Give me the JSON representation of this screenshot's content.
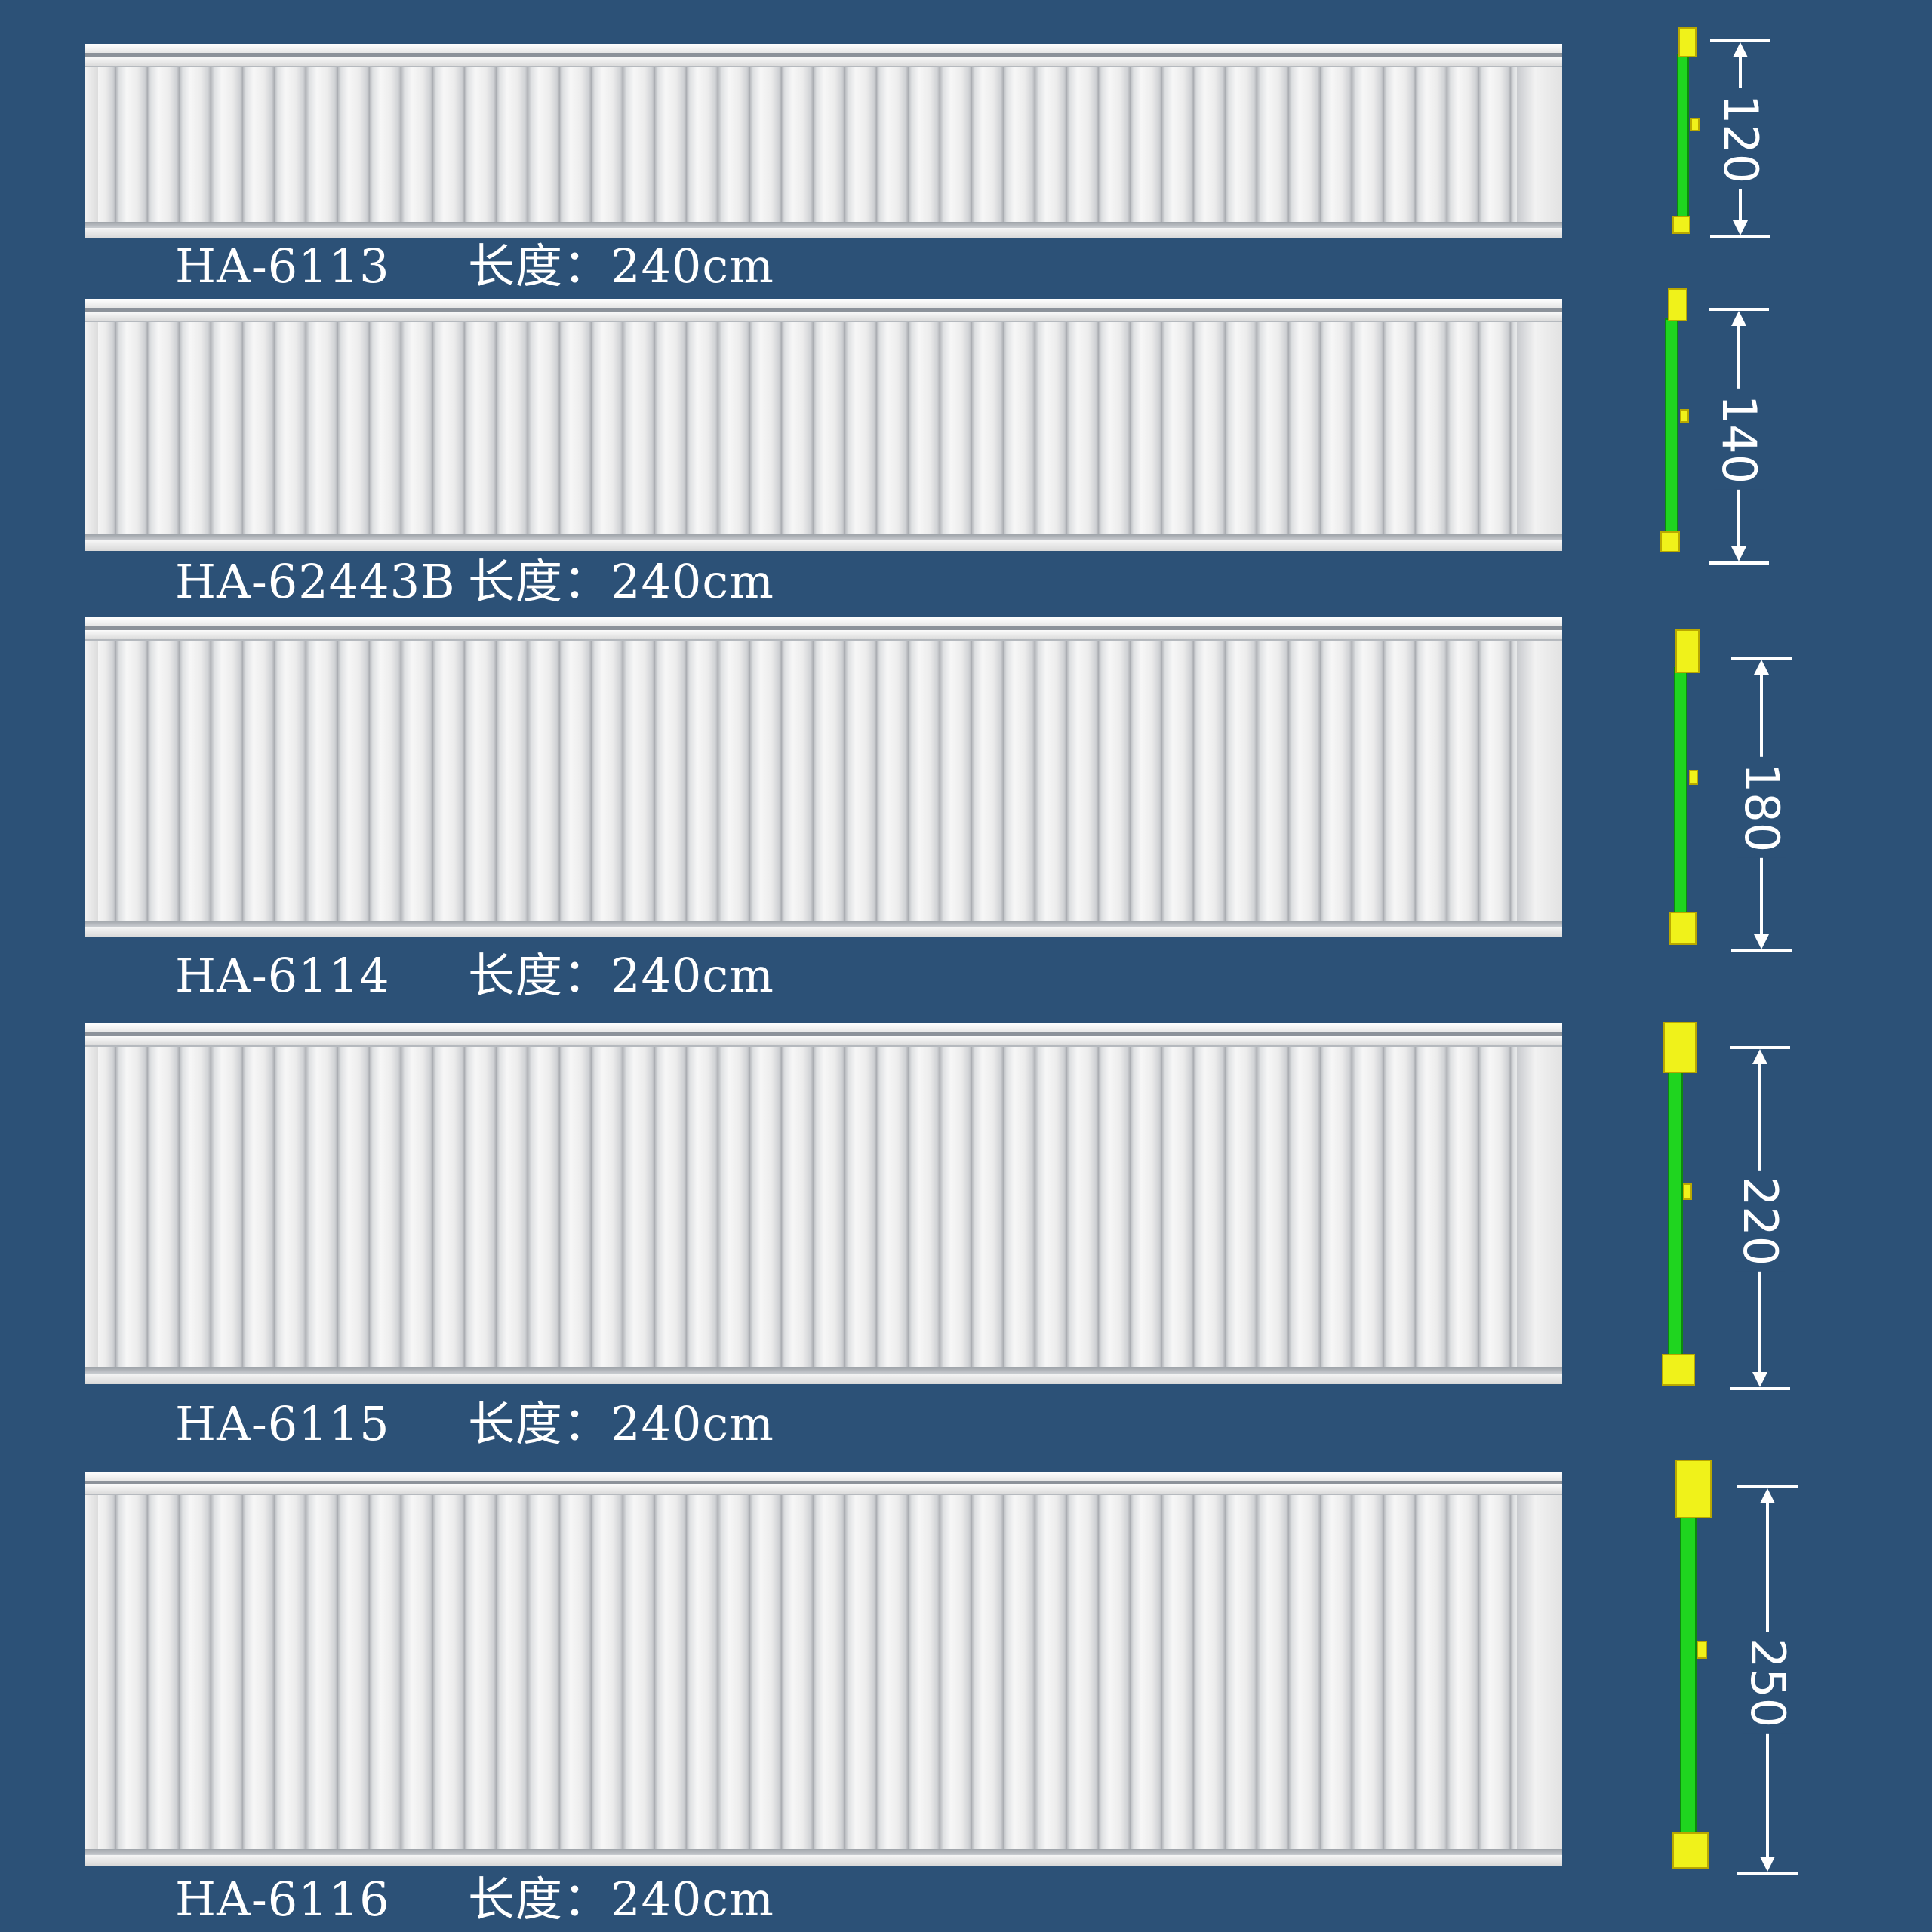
{
  "products": [
    {
      "code": "HA-6113",
      "length": "长度：240cm",
      "height": "120"
    },
    {
      "code": "HA-62443B",
      "length": "长度：240cm",
      "height": "140"
    },
    {
      "code": "HA-6114",
      "length": "长度：240cm",
      "height": "180"
    },
    {
      "code": "HA-6115",
      "length": "长度：240cm",
      "height": "220"
    },
    {
      "code": "HA-6116",
      "length": "长度：240cm",
      "height": "250"
    }
  ],
  "colors": {
    "background": "#2c5177",
    "profile_body": "#1fd51f",
    "profile_cap": "#f0f21a",
    "text": "#ffffff"
  }
}
